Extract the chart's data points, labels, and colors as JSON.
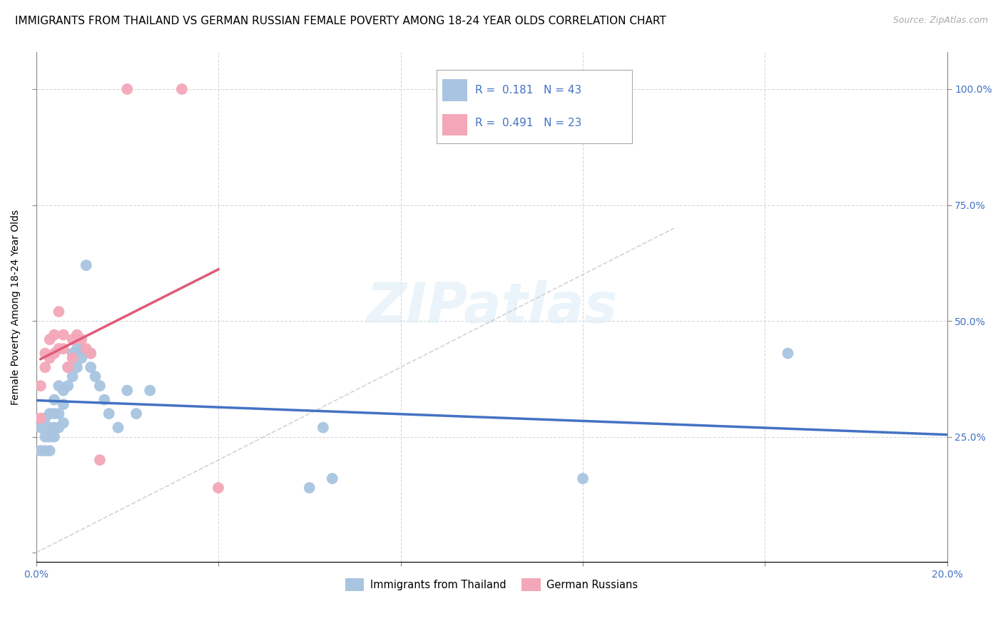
{
  "title": "IMMIGRANTS FROM THAILAND VS GERMAN RUSSIAN FEMALE POVERTY AMONG 18-24 YEAR OLDS CORRELATION CHART",
  "source": "Source: ZipAtlas.com",
  "ylabel": "Female Poverty Among 18-24 Year Olds",
  "xlim": [
    0.0,
    0.2
  ],
  "ylim": [
    -0.02,
    1.08
  ],
  "watermark": "ZIPatlas",
  "color_blue": "#a8c4e0",
  "color_pink": "#f4a7b9",
  "color_blue_line": "#4472c4",
  "color_pink_line": "#e05a7a",
  "color_dashed_line": "#c8c8c8",
  "title_fontsize": 11,
  "axis_label_fontsize": 10,
  "tick_fontsize": 10,
  "thailand_x": [
    0.001,
    0.001,
    0.002,
    0.002,
    0.002,
    0.003,
    0.003,
    0.003,
    0.003,
    0.004,
    0.004,
    0.004,
    0.004,
    0.005,
    0.005,
    0.005,
    0.006,
    0.006,
    0.006,
    0.007,
    0.007,
    0.008,
    0.008,
    0.009,
    0.009,
    0.01,
    0.01,
    0.011,
    0.012,
    0.012,
    0.013,
    0.014,
    0.015,
    0.016,
    0.018,
    0.02,
    0.022,
    0.025,
    0.06,
    0.063,
    0.065,
    0.12,
    0.165
  ],
  "thailand_y": [
    0.27,
    0.22,
    0.29,
    0.25,
    0.22,
    0.3,
    0.27,
    0.25,
    0.22,
    0.33,
    0.3,
    0.27,
    0.25,
    0.36,
    0.3,
    0.27,
    0.35,
    0.32,
    0.28,
    0.4,
    0.36,
    0.43,
    0.38,
    0.44,
    0.4,
    0.44,
    0.42,
    0.62,
    0.43,
    0.4,
    0.38,
    0.36,
    0.33,
    0.3,
    0.27,
    0.35,
    0.3,
    0.35,
    0.14,
    0.27,
    0.16,
    0.16,
    0.43
  ],
  "german_x": [
    0.001,
    0.001,
    0.002,
    0.002,
    0.003,
    0.003,
    0.004,
    0.004,
    0.005,
    0.005,
    0.006,
    0.006,
    0.007,
    0.008,
    0.008,
    0.009,
    0.01,
    0.011,
    0.012,
    0.014,
    0.02,
    0.032,
    0.04
  ],
  "german_y": [
    0.36,
    0.29,
    0.43,
    0.4,
    0.46,
    0.42,
    0.47,
    0.43,
    0.52,
    0.44,
    0.47,
    0.44,
    0.4,
    0.46,
    0.42,
    0.47,
    0.46,
    0.44,
    0.43,
    0.2,
    1.0,
    1.0,
    0.14
  ]
}
